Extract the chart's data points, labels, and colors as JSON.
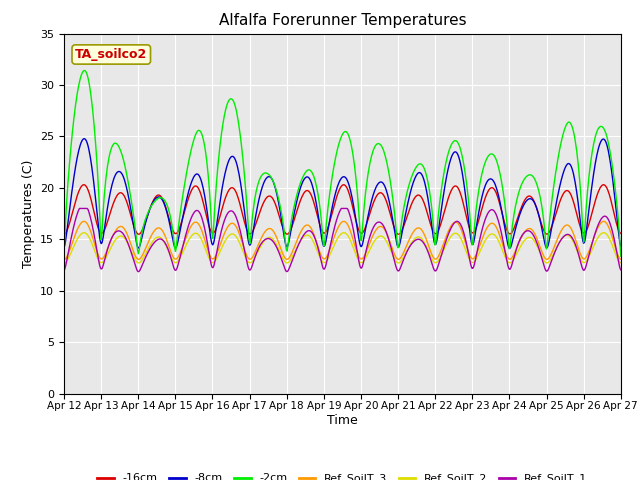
{
  "title": "Alfalfa Forerunner Temperatures",
  "ylabel": "Temperatures (C)",
  "xlabel": "Time",
  "ylim": [
    0,
    35
  ],
  "yticks": [
    0,
    5,
    10,
    15,
    20,
    25,
    30,
    35
  ],
  "annotation": "TA_soilco2",
  "annotation_color": "#cc0000",
  "annotation_bg": "#ffffdd",
  "annotation_border": "#999900",
  "background_color": "#e8e8e8",
  "series": {
    "neg16cm": {
      "label": "-16cm",
      "color": "#dd0000"
    },
    "neg8cm": {
      "label": "-8cm",
      "color": "#0000cc"
    },
    "neg2cm": {
      "label": "-2cm",
      "color": "#00ee00"
    },
    "ref3": {
      "label": "Ref_SoilT_3",
      "color": "#ff9900"
    },
    "ref2": {
      "label": "Ref_SoilT_2",
      "color": "#dddd00"
    },
    "ref1": {
      "label": "Ref_SoilT_1",
      "color": "#aa00aa"
    }
  },
  "xticklabels": [
    "Apr 12",
    "Apr 13",
    "Apr 14",
    "Apr 15",
    "Apr 16",
    "Apr 17",
    "Apr 18",
    "Apr 19",
    "Apr 20",
    "Apr 21",
    "Apr 22",
    "Apr 23",
    "Apr 24",
    "Apr 25",
    "Apr 26",
    "Apr 27"
  ]
}
